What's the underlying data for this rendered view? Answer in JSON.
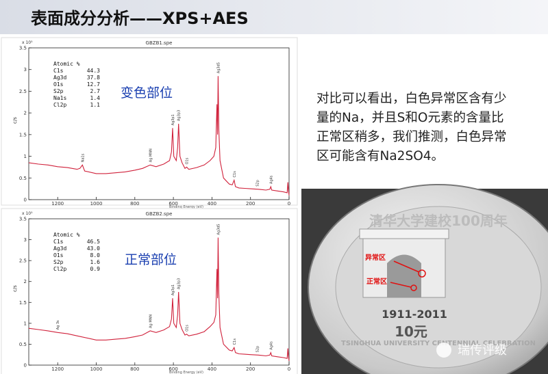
{
  "title": "表面成分分析——XPS+AES",
  "chart_data": [
    {
      "type": "line",
      "title": "GBZB1.spe",
      "ylabel": "c/s",
      "yscale_label": "x 10⁵",
      "xlabel": "Binding Energy (eV)",
      "xlim": [
        1350,
        0
      ],
      "xticks": [
        1200,
        1000,
        800,
        600,
        400,
        200,
        0
      ],
      "ylim": [
        0,
        3.5
      ],
      "yticks": [
        0,
        0.5,
        1,
        1.5,
        2,
        2.5,
        3,
        3.5
      ],
      "color": "#d0203a",
      "x": [
        1350,
        1300,
        1250,
        1200,
        1150,
        1100,
        1085,
        1072,
        1060,
        1000,
        950,
        900,
        850,
        800,
        760,
        720,
        690,
        650,
        620,
        610,
        604,
        598,
        585,
        578,
        573,
        566,
        555,
        540,
        531,
        520,
        480,
        440,
        410,
        390,
        380,
        374,
        371,
        368,
        364,
        358,
        340,
        310,
        295,
        285,
        278,
        260,
        230,
        200,
        160,
        120,
        100,
        95,
        90,
        60,
        30,
        10,
        6,
        3,
        0
      ],
      "values": [
        0.85,
        0.82,
        0.8,
        0.76,
        0.74,
        0.7,
        0.72,
        0.8,
        0.66,
        0.6,
        0.6,
        0.62,
        0.64,
        0.68,
        0.72,
        0.8,
        0.76,
        0.82,
        0.9,
        1.1,
        1.65,
        1.0,
        0.9,
        1.2,
        1.75,
        1.0,
        0.85,
        0.72,
        0.75,
        0.7,
        0.74,
        0.8,
        0.9,
        1.0,
        1.2,
        2.2,
        1.5,
        2.85,
        1.6,
        0.9,
        0.5,
        0.36,
        0.34,
        0.45,
        0.3,
        0.27,
        0.26,
        0.25,
        0.24,
        0.22,
        0.24,
        0.3,
        0.22,
        0.2,
        0.18,
        0.16,
        0.4,
        0.2,
        0.1
      ],
      "annotations": [
        {
          "text": "Na1s",
          "x": 1072
        },
        {
          "text": "Ag MNN",
          "x": 720
        },
        {
          "text": "Ag3p1",
          "x": 604
        },
        {
          "text": "Ag3p3",
          "x": 573
        },
        {
          "text": "O1s",
          "x": 531
        },
        {
          "text": "Ag3d5",
          "x": 368
        },
        {
          "text": "C1s",
          "x": 285
        },
        {
          "text": "S2p",
          "x": 165
        },
        {
          "text": "Ag4s",
          "x": 95
        }
      ],
      "table": {
        "header": "Atomic %",
        "rows": [
          [
            "C1s",
            "44.3"
          ],
          [
            "Ag3d",
            "37.8"
          ],
          [
            "O1s",
            "12.7"
          ],
          [
            "S2p",
            "2.7"
          ],
          [
            "Na1s",
            "1.4"
          ],
          [
            "Cl2p",
            "1.1"
          ]
        ]
      },
      "label": "变色部位"
    },
    {
      "type": "line",
      "title": "GBZB2.spe",
      "ylabel": "c/s",
      "yscale_label": "x 10⁵",
      "xlabel": "Binding Energy (eV)",
      "xlim": [
        1350,
        0
      ],
      "xticks": [
        1200,
        1000,
        800,
        600,
        400,
        200,
        0
      ],
      "ylim": [
        0,
        3.5
      ],
      "yticks": [
        0,
        0.5,
        1,
        1.5,
        2,
        2.5,
        3,
        3.5
      ],
      "color": "#d0203a",
      "x": [
        1350,
        1300,
        1250,
        1200,
        1150,
        1100,
        1000,
        950,
        900,
        850,
        800,
        760,
        720,
        690,
        650,
        620,
        610,
        604,
        598,
        585,
        578,
        573,
        566,
        555,
        540,
        531,
        520,
        480,
        440,
        410,
        390,
        380,
        374,
        371,
        368,
        364,
        358,
        340,
        310,
        295,
        285,
        278,
        260,
        230,
        200,
        160,
        120,
        100,
        95,
        90,
        60,
        30,
        10,
        6,
        3,
        0
      ],
      "values": [
        0.88,
        0.85,
        0.82,
        0.78,
        0.75,
        0.7,
        0.6,
        0.6,
        0.62,
        0.64,
        0.68,
        0.72,
        0.82,
        0.78,
        0.84,
        0.92,
        1.1,
        1.6,
        1.0,
        0.9,
        1.2,
        1.75,
        1.0,
        0.85,
        0.72,
        0.74,
        0.7,
        0.74,
        0.8,
        0.92,
        1.02,
        1.2,
        2.3,
        1.6,
        3.05,
        1.7,
        0.9,
        0.5,
        0.36,
        0.34,
        0.42,
        0.3,
        0.27,
        0.26,
        0.25,
        0.24,
        0.22,
        0.24,
        0.3,
        0.22,
        0.2,
        0.18,
        0.16,
        0.4,
        0.2,
        0.1
      ],
      "annotations": [
        {
          "text": "Ag 3s",
          "x": 1200
        },
        {
          "text": "Ag MNN",
          "x": 720
        },
        {
          "text": "Ag3p1",
          "x": 604
        },
        {
          "text": "Ag3p3",
          "x": 573
        },
        {
          "text": "O1s",
          "x": 531
        },
        {
          "text": "Ag3d5",
          "x": 368
        },
        {
          "text": "C1s",
          "x": 285
        },
        {
          "text": "S2p",
          "x": 165
        },
        {
          "text": "Ag4s",
          "x": 95
        }
      ],
      "table": {
        "header": "Atomic %",
        "rows": [
          [
            "C1s",
            "46.5"
          ],
          [
            "Ag3d",
            "43.0"
          ],
          [
            "O1s",
            "8.0"
          ],
          [
            "S2p",
            "1.6"
          ],
          [
            "Cl2p",
            "0.9"
          ]
        ]
      },
      "label": "正常部位"
    }
  ],
  "text_lines": [
    "对比可以看出，白色异常区含有少",
    "量的Na，并且S和O元素的含量比",
    "正常区稍多，我们推测，白色异常",
    "区可能含有Na2SO4。"
  ],
  "coin": {
    "top_text": "清华大学建校100周年",
    "rim_text": "TSINGHUA UNIVERSITY CENTENNIAL CELEBRATION",
    "years": "1911-2011",
    "denomination": "10元",
    "abnormal": "异常区",
    "normal": "正常区"
  },
  "watermark": "瑞传评级"
}
